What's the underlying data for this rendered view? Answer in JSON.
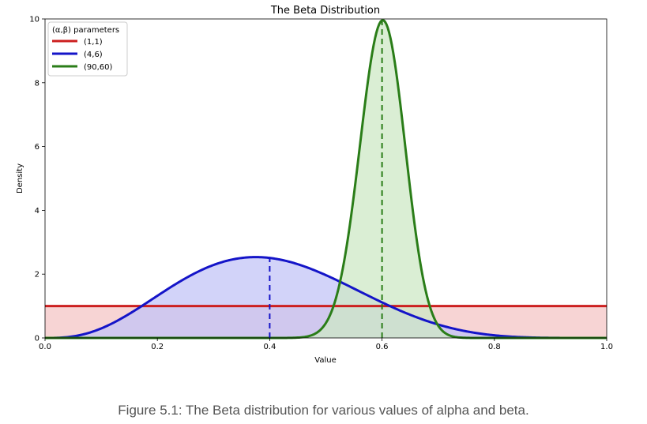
{
  "chart_data": {
    "type": "line",
    "title": "The Beta Distribution",
    "xlabel": "Value",
    "ylabel": "Density",
    "xlim": [
      0.0,
      1.0
    ],
    "ylim": [
      0,
      10
    ],
    "xticks": [
      "0.0",
      "0.2",
      "0.4",
      "0.6",
      "0.8",
      "1.0"
    ],
    "yticks": [
      "0",
      "2",
      "4",
      "6",
      "8",
      "10"
    ],
    "grid": false,
    "legend": {
      "title": "(α,β) parameters",
      "placement": "top-left"
    },
    "series": [
      {
        "name": "(1,1)",
        "alpha": 1,
        "beta": 1,
        "color": "#cc1f1f",
        "fill": "#f4c6c6",
        "mean_line": null
      },
      {
        "name": "(4,6)",
        "alpha": 4,
        "beta": 6,
        "color": "#1414c8",
        "fill": "#c3c4f7",
        "mean_line": 0.4
      },
      {
        "name": "(90,60)",
        "alpha": 90,
        "beta": 60,
        "color": "#2a7d18",
        "fill": "#cde8c6",
        "mean_line": 0.6
      }
    ]
  },
  "caption": "Figure 5.1: The Beta distribution for various values of alpha and beta."
}
